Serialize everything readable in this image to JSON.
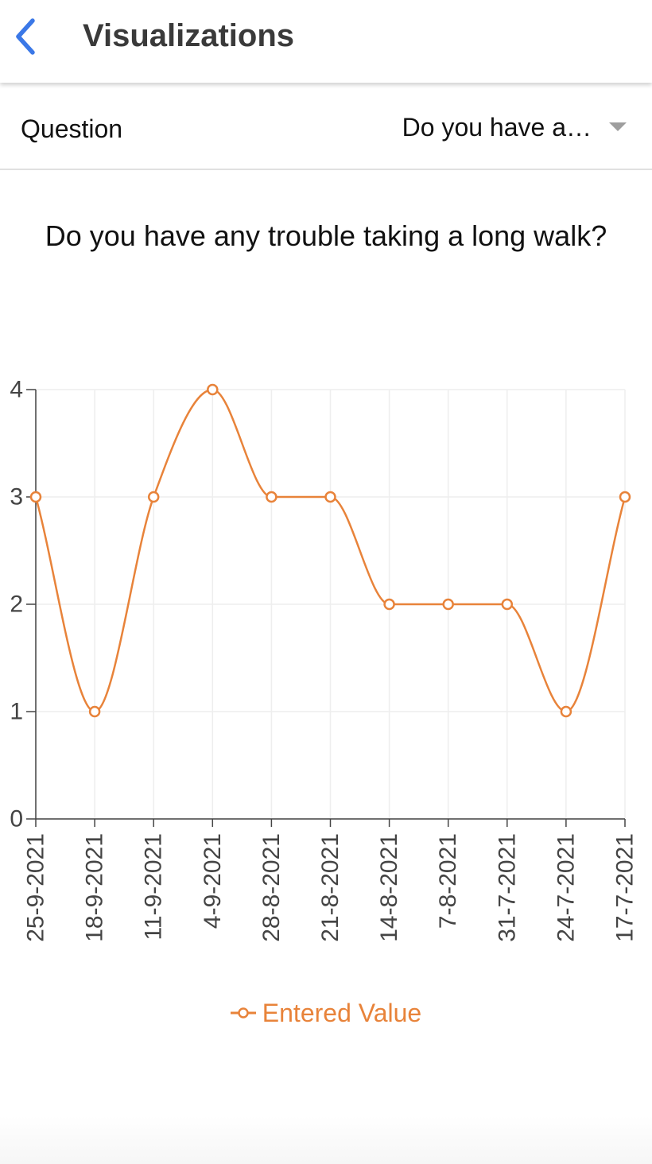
{
  "nav": {
    "title": "Visualizations",
    "back_icon": "chevron-left-icon"
  },
  "question": {
    "label": "Question",
    "selected": "Do you have a…",
    "dropdown_icon": "caret-down-icon"
  },
  "colors": {
    "accent_blue": "#3b78e7",
    "series": "#e8833a",
    "grid": "#eeeeee",
    "axis": "#444444"
  },
  "chart_data": {
    "type": "line",
    "title": "Do you have any trouble taking a long walk?",
    "categories": [
      "25-9-2021",
      "18-9-2021",
      "11-9-2021",
      "4-9-2021",
      "28-8-2021",
      "21-8-2021",
      "14-8-2021",
      "7-8-2021",
      "31-7-2021",
      "24-7-2021",
      "17-7-2021"
    ],
    "series": [
      {
        "name": "Entered Value",
        "values": [
          3,
          1,
          3,
          4,
          3,
          3,
          2,
          2,
          2,
          1,
          3
        ]
      }
    ],
    "ylim": [
      0,
      4
    ],
    "yticks": [
      "0",
      "1",
      "2",
      "3",
      "4"
    ],
    "grid": true,
    "smooth": true,
    "legend_position": "bottom"
  }
}
